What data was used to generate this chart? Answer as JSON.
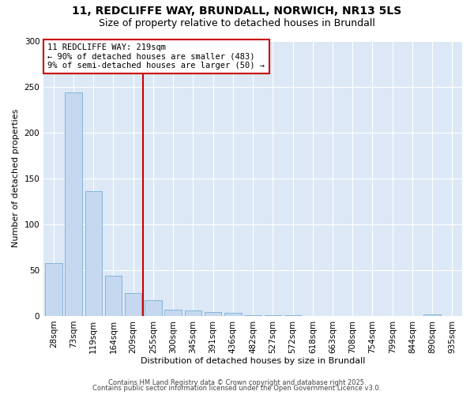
{
  "title_line1": "11, REDCLIFFE WAY, BRUNDALL, NORWICH, NR13 5LS",
  "title_line2": "Size of property relative to detached houses in Brundall",
  "xlabel": "Distribution of detached houses by size in Brundall",
  "ylabel": "Number of detached properties",
  "categories": [
    "28sqm",
    "73sqm",
    "119sqm",
    "164sqm",
    "209sqm",
    "255sqm",
    "300sqm",
    "345sqm",
    "391sqm",
    "436sqm",
    "482sqm",
    "527sqm",
    "572sqm",
    "618sqm",
    "663sqm",
    "708sqm",
    "754sqm",
    "799sqm",
    "844sqm",
    "890sqm",
    "935sqm"
  ],
  "values": [
    58,
    244,
    136,
    44,
    25,
    17,
    7,
    6,
    4,
    3,
    1,
    1,
    1,
    0,
    0,
    0,
    0,
    0,
    0,
    2,
    0
  ],
  "bar_color": "#c5d8f0",
  "bar_edge_color": "#7aadd4",
  "figure_bg": "#ffffff",
  "plot_bg": "#dce8f5",
  "grid_color": "#ffffff",
  "redline_x": 4.5,
  "annotation_line1": "11 REDCLIFFE WAY: 219sqm",
  "annotation_line2": "← 90% of detached houses are smaller (483)",
  "annotation_line3": "9% of semi-detached houses are larger (50) →",
  "annotation_box_color": "#ffffff",
  "annotation_box_edge": "#cc0000",
  "redline_color": "#cc0000",
  "ylim": [
    0,
    300
  ],
  "yticks": [
    0,
    50,
    100,
    150,
    200,
    250,
    300
  ],
  "footer_line1": "Contains HM Land Registry data © Crown copyright and database right 2025.",
  "footer_line2": "Contains public sector information licensed under the Open Government Licence v3.0.",
  "title_fontsize": 10,
  "subtitle_fontsize": 9,
  "axis_label_fontsize": 8,
  "tick_fontsize": 7.5,
  "annotation_fontsize": 7.5,
  "footer_fontsize": 6
}
